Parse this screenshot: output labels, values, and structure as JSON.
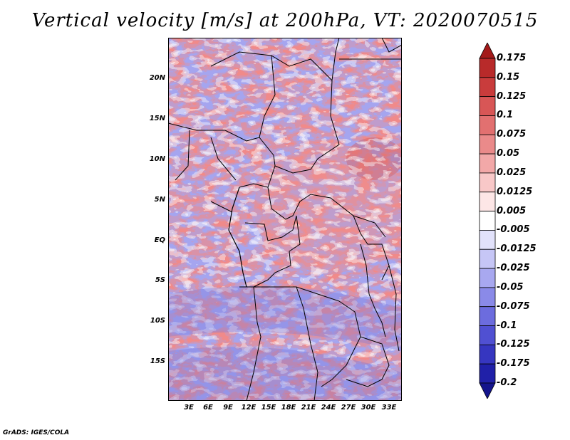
{
  "title": "Vertical velocity [m/s] at 200hPa, VT: 2020070515",
  "map": {
    "y_labels": [
      "20N",
      "15N",
      "10N",
      "5N",
      "EQ",
      "5S",
      "10S",
      "15S"
    ],
    "x_labels": [
      "3E",
      "6E",
      "9E",
      "12E",
      "15E",
      "18E",
      "21E",
      "24E",
      "27E",
      "30E",
      "33E"
    ]
  },
  "colorbar": {
    "labels": [
      "0.175",
      "0.15",
      "0.125",
      "0.1",
      "0.075",
      "0.05",
      "0.025",
      "0.0125",
      "0.005",
      "-0.005",
      "-0.0125",
      "-0.025",
      "-0.05",
      "-0.075",
      "-0.1",
      "-0.125",
      "-0.175",
      "-0.2"
    ],
    "colors": [
      "#a31a1a",
      "#b82a2a",
      "#c93c3c",
      "#d85656",
      "#e27070",
      "#ea8a8a",
      "#f2a8a8",
      "#f8c8c8",
      "#fde6e6",
      "#ffffff",
      "#e2e2fb",
      "#c6c6f6",
      "#a8a8f0",
      "#8a8ae8",
      "#6c6cde",
      "#5050d2",
      "#3636c0",
      "#2020a8",
      "#14148c"
    ]
  },
  "credit": "GrADS: IGES/COLA"
}
